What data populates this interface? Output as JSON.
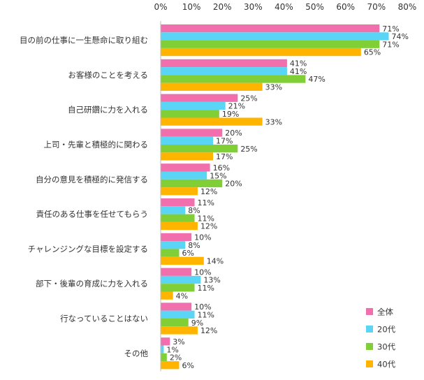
{
  "chart_data": {
    "type": "bar",
    "orientation": "horizontal",
    "xlim": [
      0,
      80
    ],
    "ticks": [
      "0%",
      "10%",
      "20%",
      "30%",
      "40%",
      "50%",
      "60%",
      "70%",
      "80%"
    ],
    "tick_values": [
      0,
      10,
      20,
      30,
      40,
      50,
      60,
      70,
      80
    ],
    "categories": [
      "目の前の仕事に一生懸命に取り組む",
      "お客様のことを考える",
      "自己研鑽に力を入れる",
      "上司・先輩と積極的に関わる",
      "自分の意見を積極的に発信する",
      "責任のある仕事を任せてもらう",
      "チャレンジングな目標を設定する",
      "部下・後輩の育成に力を入れる",
      "行なっていることはない",
      "その他"
    ],
    "series": [
      {
        "name": "全体",
        "color": "#f06fac",
        "values": [
          71,
          41,
          25,
          20,
          16,
          11,
          10,
          10,
          10,
          3
        ]
      },
      {
        "name": "20代",
        "color": "#5bd5f5",
        "values": [
          74,
          41,
          21,
          17,
          15,
          8,
          8,
          13,
          11,
          1
        ]
      },
      {
        "name": "30代",
        "color": "#80cf36",
        "values": [
          71,
          47,
          19,
          25,
          20,
          11,
          6,
          11,
          9,
          2
        ]
      },
      {
        "name": "40代",
        "color": "#ffb400",
        "values": [
          65,
          33,
          33,
          17,
          12,
          12,
          14,
          4,
          12,
          6
        ]
      }
    ],
    "value_suffix": "%",
    "grid": false,
    "legend_position": "bottom-right"
  }
}
